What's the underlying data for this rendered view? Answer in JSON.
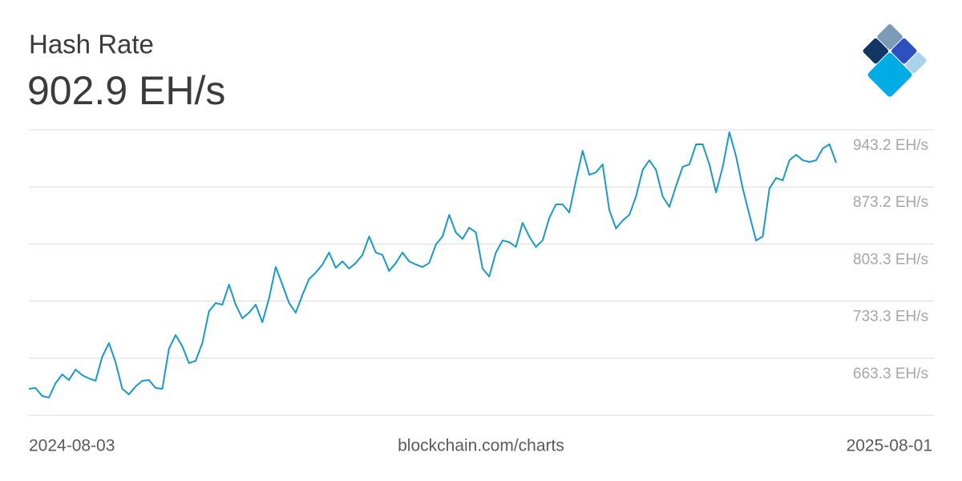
{
  "chart_data": {
    "type": "line",
    "title": "Hash Rate",
    "headline": "902.9 EH/s",
    "source": "blockchain.com/charts",
    "x": [
      "2024-08-03",
      "2024-08-06",
      "2024-08-09",
      "2024-08-12",
      "2024-08-15",
      "2024-08-18",
      "2024-08-21",
      "2024-08-24",
      "2024-08-27",
      "2024-08-30",
      "2024-09-02",
      "2024-09-05",
      "2024-09-08",
      "2024-09-11",
      "2024-09-14",
      "2024-09-17",
      "2024-09-20",
      "2024-09-23",
      "2024-09-26",
      "2024-09-29",
      "2024-10-02",
      "2024-10-05",
      "2024-10-08",
      "2024-10-11",
      "2024-10-14",
      "2024-10-17",
      "2024-10-20",
      "2024-10-23",
      "2024-10-26",
      "2024-10-29",
      "2024-11-01",
      "2024-11-04",
      "2024-11-07",
      "2024-11-10",
      "2024-11-13",
      "2024-11-16",
      "2024-11-19",
      "2024-11-22",
      "2024-11-25",
      "2024-11-28",
      "2024-12-01",
      "2024-12-04",
      "2024-12-07",
      "2024-12-10",
      "2024-12-13",
      "2024-12-16",
      "2024-12-19",
      "2024-12-22",
      "2024-12-25",
      "2024-12-28",
      "2024-12-31",
      "2025-01-03",
      "2025-01-06",
      "2025-01-09",
      "2025-01-12",
      "2025-01-15",
      "2025-01-18",
      "2025-01-21",
      "2025-01-24",
      "2025-01-27",
      "2025-01-30",
      "2025-02-02",
      "2025-02-05",
      "2025-02-08",
      "2025-02-11",
      "2025-02-14",
      "2025-02-17",
      "2025-02-20",
      "2025-02-23",
      "2025-02-26",
      "2025-03-01",
      "2025-03-04",
      "2025-03-07",
      "2025-03-10",
      "2025-03-13",
      "2025-03-16",
      "2025-03-19",
      "2025-03-22",
      "2025-03-25",
      "2025-03-28",
      "2025-03-31",
      "2025-04-03",
      "2025-04-06",
      "2025-04-09",
      "2025-04-12",
      "2025-04-15",
      "2025-04-18",
      "2025-04-21",
      "2025-04-24",
      "2025-04-27",
      "2025-04-30",
      "2025-05-03",
      "2025-05-06",
      "2025-05-09",
      "2025-05-12",
      "2025-05-15",
      "2025-05-18",
      "2025-05-21",
      "2025-05-24",
      "2025-05-27",
      "2025-05-30",
      "2025-06-02",
      "2025-06-05",
      "2025-06-08",
      "2025-06-11",
      "2025-06-14",
      "2025-06-17",
      "2025-06-20",
      "2025-06-23",
      "2025-06-26",
      "2025-06-29",
      "2025-07-02",
      "2025-07-05",
      "2025-07-08",
      "2025-07-11",
      "2025-07-14",
      "2025-07-17",
      "2025-07-20",
      "2025-07-23",
      "2025-07-26",
      "2025-07-29",
      "2025-08-01"
    ],
    "series": [
      {
        "color": "#1a99c9",
        "values": [
          625.7,
          626.7,
          616.9,
          615.0,
          632.6,
          643.4,
          636.5,
          649.3,
          642.4,
          638.5,
          635.6,
          665.1,
          681.8,
          658.2,
          625.7,
          618.9,
          628.7,
          635.6,
          636.5,
          626.7,
          625.7,
          674.9,
          691.6,
          677.8,
          657.2,
          660.1,
          681.8,
          720.9,
          730.9,
          728.9,
          753.5,
          728.9,
          712.2,
          719.1,
          728.9,
          707.3,
          736.8,
          775.1,
          753.5,
          730.9,
          719.1,
          740.7,
          760.4,
          768.2,
          778.1,
          792.8,
          774.1,
          782.0,
          773.2,
          780.0,
          789.9,
          812.5,
          792.8,
          789.9,
          770.2,
          780.0,
          792.8,
          782.0,
          778.1,
          775.1,
          780.0,
          802.6,
          812.5,
          839.0,
          817.4,
          809.5,
          823.3,
          817.4,
          773.2,
          763.3,
          792.8,
          807.6,
          805.6,
          799.7,
          829.2,
          812.5,
          799.7,
          807.6,
          835.1,
          851.8,
          851.8,
          841.9,
          881.3,
          917.6,
          888.2,
          891.1,
          900.9,
          844.9,
          822.3,
          832.1,
          839.0,
          861.6,
          894.1,
          905.9,
          894.1,
          861.6,
          848.8,
          874.4,
          898.0,
          900.9,
          925.5,
          925.5,
          900.9,
          866.5,
          898.0,
          940.3,
          910.8,
          871.4,
          839.0,
          807.6,
          812.5,
          871.4,
          884.2,
          881.3,
          905.9,
          912.7,
          905.9,
          903.9,
          905.9,
          920.6,
          925.5,
          902.9
        ]
      }
    ],
    "ylim": [
      593.3,
      943.2
    ],
    "yticks": [
      {
        "value": 943.2,
        "label": "943.2 EH/s"
      },
      {
        "value": 873.2,
        "label": "873.2 EH/s"
      },
      {
        "value": 803.3,
        "label": "803.3 EH/s"
      },
      {
        "value": 733.3,
        "label": "733.3 EH/s"
      },
      {
        "value": 663.3,
        "label": "663.3 EH/s"
      }
    ],
    "grid": true
  }
}
